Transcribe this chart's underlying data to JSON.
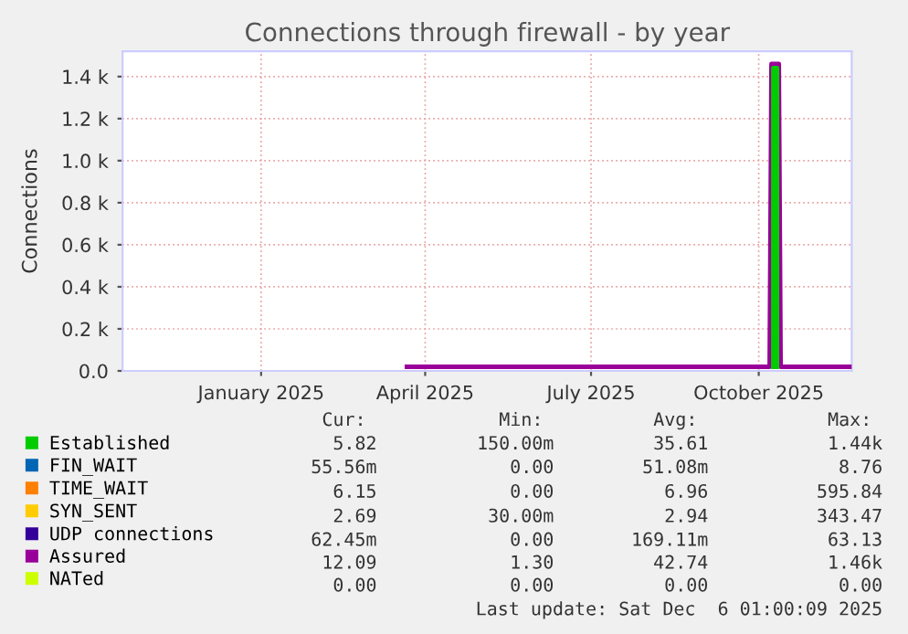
{
  "chart_data": {
    "type": "line",
    "title": "Connections through firewall - by year",
    "ylabel": "Connections",
    "xlim": [
      "2024-11-01",
      "2025-12-06"
    ],
    "ylim": [
      0,
      1520
    ],
    "xticks": [
      {
        "value": "2025-01-16",
        "label": "January 2025"
      },
      {
        "value": "2025-04-16",
        "label": "April 2025"
      },
      {
        "value": "2025-07-16",
        "label": "July 2025"
      },
      {
        "value": "2025-10-16",
        "label": "October 2025"
      }
    ],
    "yticks": [
      {
        "value": 0,
        "label": "0.0"
      },
      {
        "value": 200,
        "label": "0.2 k"
      },
      {
        "value": 400,
        "label": "0.4 k"
      },
      {
        "value": 600,
        "label": "0.6 k"
      },
      {
        "value": 800,
        "label": "0.8 k"
      },
      {
        "value": 1000,
        "label": "1.0 k"
      },
      {
        "value": 1200,
        "label": "1.2 k"
      },
      {
        "value": 1400,
        "label": "1.4 k"
      }
    ],
    "grid": true,
    "legend": "bottom",
    "x": [
      "2025-04-06",
      "2025-05-01",
      "2025-06-01",
      "2025-07-01",
      "2025-08-01",
      "2025-09-01",
      "2025-10-01",
      "2025-10-22",
      "2025-10-23",
      "2025-10-27",
      "2025-10-28",
      "2025-11-15",
      "2025-12-05"
    ],
    "series": [
      {
        "name": "Established",
        "color": "#00cc00",
        "x": [
          "2025-10-24",
          "2025-10-24",
          "2025-10-26",
          "2025-10-26"
        ],
        "values": [
          20,
          1440,
          1440,
          20
        ]
      },
      {
        "name": "FIN_WAIT",
        "color": "#0066b3",
        "values": [
          null,
          null,
          null,
          null,
          null,
          null,
          null,
          null,
          null,
          null,
          null,
          null,
          null
        ]
      },
      {
        "name": "TIME_WAIT",
        "color": "#ff8000",
        "values": [
          null,
          null,
          null,
          null,
          null,
          null,
          null,
          null,
          null,
          null,
          null,
          null,
          null
        ]
      },
      {
        "name": "SYN_SENT",
        "color": "#ffcc00",
        "values": [
          null,
          null,
          null,
          null,
          null,
          null,
          null,
          null,
          null,
          null,
          null,
          null,
          null
        ]
      },
      {
        "name": "UDP connections",
        "color": "#330099",
        "values": [
          null,
          null,
          null,
          null,
          null,
          null,
          null,
          null,
          null,
          null,
          null,
          null,
          null
        ]
      },
      {
        "name": "Assured",
        "color": "#990099",
        "values": [
          20,
          20,
          20,
          20,
          20,
          20,
          20,
          20,
          1460,
          1460,
          20,
          20,
          20
        ]
      },
      {
        "name": "NATed",
        "color": "#ccff00",
        "values": [
          null,
          null,
          null,
          null,
          null,
          null,
          null,
          null,
          null,
          null,
          null,
          null,
          null
        ]
      }
    ],
    "annotations": [
      "Cur:",
      "Min:",
      "Avg:",
      "Max:",
      "5.82",
      "150.00m",
      "35.61",
      "1.44k",
      "55.56m",
      "0.00",
      "51.08m",
      "8.76",
      "6.15",
      "0.00",
      "6.96",
      "595.84",
      "2.69",
      "30.00m",
      "2.94",
      "343.47",
      "62.45m",
      "0.00",
      "169.11m",
      "63.13",
      "12.09",
      "1.30",
      "42.74",
      "1.46k",
      "0.00",
      "0.00",
      "0.00",
      "0.00",
      "Last update: Sat Dec  6 01:00:09 2025"
    ]
  }
}
